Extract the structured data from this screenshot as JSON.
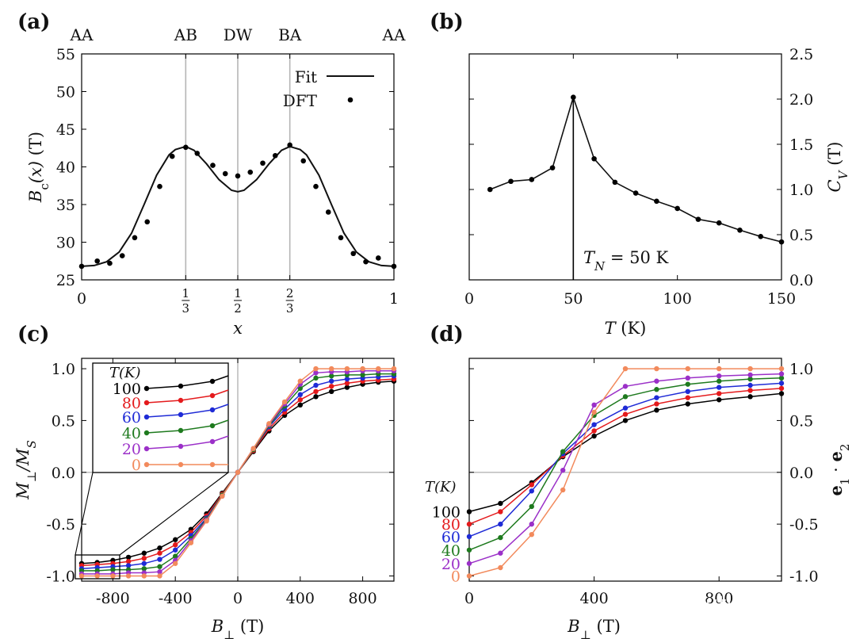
{
  "chart_data": [
    {
      "panel": "(a)",
      "type": "line",
      "xlabel": "x",
      "ylabel": "B_c(x) (T)",
      "xlim": [
        0,
        1
      ],
      "ylim": [
        25,
        55
      ],
      "yticks": [
        25,
        30,
        35,
        40,
        45,
        50,
        55
      ],
      "xtick_labels": [
        "0",
        "1/3",
        "1/2",
        "2/3",
        "1"
      ],
      "top_labels": [
        "AA",
        "AB",
        "DW",
        "BA",
        "AA"
      ],
      "vlines": [
        0.3333,
        0.5,
        0.6667
      ],
      "legend": [
        "Fit",
        "DFT"
      ],
      "fit_label": "Fit",
      "dft_label": "DFT",
      "fit_x": [
        0,
        0.04,
        0.08,
        0.12,
        0.16,
        0.2,
        0.24,
        0.28,
        0.3,
        0.3333,
        0.36,
        0.4,
        0.44,
        0.48,
        0.5,
        0.52,
        0.56,
        0.6,
        0.64,
        0.6667,
        0.7,
        0.72,
        0.76,
        0.8,
        0.84,
        0.88,
        0.92,
        0.96,
        1
      ],
      "fit_y": [
        26.8,
        26.9,
        27.4,
        28.7,
        31.2,
        35.0,
        38.9,
        41.6,
        42.3,
        42.7,
        42.2,
        40.4,
        38.3,
        36.9,
        36.7,
        36.9,
        38.3,
        40.4,
        42.2,
        42.7,
        42.3,
        41.6,
        38.9,
        35.0,
        31.2,
        28.7,
        27.4,
        26.9,
        26.8
      ],
      "dft_x": [
        0,
        0.05,
        0.09,
        0.13,
        0.17,
        0.21,
        0.25,
        0.29,
        0.3333,
        0.37,
        0.42,
        0.46,
        0.5,
        0.54,
        0.58,
        0.62,
        0.6667,
        0.71,
        0.75,
        0.79,
        0.83,
        0.87,
        0.91,
        0.95,
        1
      ],
      "dft_y": [
        26.8,
        27.5,
        27.2,
        28.2,
        30.6,
        32.7,
        37.4,
        41.4,
        42.6,
        41.8,
        40.2,
        39.1,
        38.8,
        39.3,
        40.5,
        41.5,
        42.9,
        40.8,
        37.4,
        34.0,
        30.6,
        28.5,
        27.4,
        27.9,
        26.8
      ]
    },
    {
      "panel": "(b)",
      "type": "line",
      "xlabel": "T (K)",
      "ylabel": "C_V (T)",
      "xlim": [
        0,
        150
      ],
      "ylim": [
        0,
        2.5
      ],
      "xticks": [
        0,
        50,
        100,
        150
      ],
      "yticks": [
        "0.0",
        "0.5",
        "1.0",
        "1.5",
        "2.0",
        "2.5"
      ],
      "annotation": "T_N = 50 K",
      "vline": 50,
      "x": [
        10,
        20,
        30,
        40,
        50,
        60,
        70,
        80,
        90,
        100,
        110,
        120,
        130,
        140,
        150
      ],
      "y": [
        1.0,
        1.09,
        1.11,
        1.24,
        2.02,
        1.34,
        1.08,
        0.96,
        0.87,
        0.79,
        0.67,
        0.63,
        0.55,
        0.48,
        0.42
      ]
    },
    {
      "panel": "(c)",
      "type": "line",
      "xlabel": "B⊥ (T)",
      "ylabel": "M⊥/M_S",
      "xlim": [
        -1000,
        1000
      ],
      "ylim": [
        -1.05,
        1.1
      ],
      "xticks": [
        "-800",
        "-400",
        "0",
        "400",
        "800"
      ],
      "yticks": [
        "-1.0",
        "-0.5",
        "0.0",
        "0.5",
        "1.0"
      ],
      "legend_title": "T(K)",
      "x": [
        -1000,
        -900,
        -800,
        -700,
        -600,
        -500,
        -400,
        -300,
        -200,
        -100,
        0,
        100,
        200,
        300,
        400,
        500,
        600,
        700,
        800,
        900,
        1000
      ],
      "series": [
        {
          "name": "100",
          "color": "#000000",
          "values": [
            -0.88,
            -0.87,
            -0.85,
            -0.82,
            -0.78,
            -0.73,
            -0.65,
            -0.55,
            -0.4,
            -0.2,
            0,
            0.2,
            0.4,
            0.55,
            0.65,
            0.73,
            0.78,
            0.82,
            0.85,
            0.87,
            0.88
          ]
        },
        {
          "name": "80",
          "color": "#e41a1c",
          "values": [
            -0.9,
            -0.89,
            -0.88,
            -0.86,
            -0.83,
            -0.78,
            -0.7,
            -0.58,
            -0.42,
            -0.21,
            0,
            0.21,
            0.42,
            0.58,
            0.7,
            0.78,
            0.83,
            0.86,
            0.88,
            0.89,
            0.9
          ]
        },
        {
          "name": "60",
          "color": "#1f2bd6",
          "values": [
            -0.93,
            -0.92,
            -0.91,
            -0.9,
            -0.88,
            -0.84,
            -0.75,
            -0.61,
            -0.44,
            -0.22,
            0,
            0.22,
            0.44,
            0.61,
            0.75,
            0.84,
            0.88,
            0.9,
            0.91,
            0.92,
            0.93
          ]
        },
        {
          "name": "40",
          "color": "#1e7a1e",
          "values": [
            -0.95,
            -0.95,
            -0.94,
            -0.94,
            -0.93,
            -0.91,
            -0.81,
            -0.64,
            -0.45,
            -0.22,
            0,
            0.22,
            0.45,
            0.64,
            0.81,
            0.91,
            0.93,
            0.94,
            0.94,
            0.95,
            0.95
          ]
        },
        {
          "name": "20",
          "color": "#9b30c8",
          "values": [
            -0.98,
            -0.98,
            -0.98,
            -0.97,
            -0.97,
            -0.96,
            -0.85,
            -0.66,
            -0.46,
            -0.23,
            0,
            0.23,
            0.46,
            0.66,
            0.85,
            0.96,
            0.97,
            0.97,
            0.98,
            0.98,
            0.98
          ]
        },
        {
          "name": "0",
          "color": "#f28a5c",
          "values": [
            -1.0,
            -1.0,
            -1.0,
            -1.0,
            -1.0,
            -1.0,
            -0.88,
            -0.68,
            -0.47,
            -0.23,
            0,
            0.23,
            0.47,
            0.68,
            0.88,
            1.0,
            1.0,
            1.0,
            1.0,
            1.0,
            1.0
          ]
        }
      ]
    },
    {
      "panel": "(d)",
      "type": "line",
      "xlabel": "B⊥ (T)",
      "ylabel": "e1 · e2",
      "xlim": [
        0,
        1000
      ],
      "ylim": [
        -1.05,
        1.1
      ],
      "xticks": [
        "0",
        "400",
        "800"
      ],
      "yticks": [
        "-1.0",
        "-0.5",
        "0.0",
        "0.5",
        "1.0"
      ],
      "legend_title": "T(K)",
      "x": [
        0,
        100,
        200,
        300,
        400,
        500,
        600,
        700,
        800,
        900,
        1000
      ],
      "series": [
        {
          "name": "100",
          "color": "#000000",
          "values": [
            -0.38,
            -0.3,
            -0.1,
            0.15,
            0.35,
            0.5,
            0.6,
            0.66,
            0.7,
            0.73,
            0.76
          ]
        },
        {
          "name": "80",
          "color": "#e41a1c",
          "values": [
            -0.5,
            -0.38,
            -0.12,
            0.16,
            0.4,
            0.56,
            0.66,
            0.72,
            0.76,
            0.79,
            0.81
          ]
        },
        {
          "name": "60",
          "color": "#1f2bd6",
          "values": [
            -0.62,
            -0.5,
            -0.18,
            0.18,
            0.46,
            0.62,
            0.72,
            0.78,
            0.82,
            0.84,
            0.86
          ]
        },
        {
          "name": "40",
          "color": "#1e7a1e",
          "values": [
            -0.75,
            -0.63,
            -0.33,
            0.2,
            0.55,
            0.73,
            0.8,
            0.85,
            0.88,
            0.9,
            0.91
          ]
        },
        {
          "name": "20",
          "color": "#9b30c8",
          "values": [
            -0.88,
            -0.78,
            -0.5,
            0.02,
            0.65,
            0.83,
            0.88,
            0.91,
            0.93,
            0.94,
            0.95
          ]
        },
        {
          "name": "0",
          "color": "#f28a5c",
          "values": [
            -1.0,
            -0.92,
            -0.6,
            -0.17,
            0.58,
            1.0,
            1.0,
            1.0,
            1.0,
            1.0,
            1.0
          ]
        }
      ]
    }
  ],
  "watermark": "知乎 @Future远见"
}
